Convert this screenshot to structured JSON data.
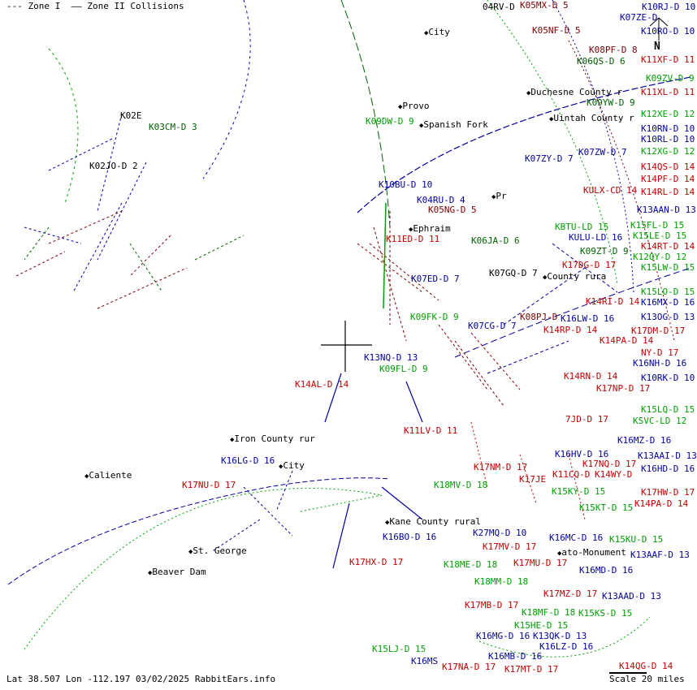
{
  "legend": {
    "zone1_symbol": "---",
    "zone1_label": "Zone I",
    "zone2_symbol": "——",
    "zone2_label": "Zone II",
    "collisions_label": "Collisions"
  },
  "status": {
    "coordinates": "Lat 38.507 Lon -112.197",
    "date": "03/02/2025",
    "site": "RabbitEars.info"
  },
  "scale": {
    "label": "Scale 20 miles"
  },
  "north": {
    "label": "N"
  },
  "colors": {
    "darkred": "#7a0000",
    "red": "#c00000",
    "blue": "#0000a0",
    "green": "#00a000",
    "darkgreen": "#006000",
    "black": "#000000"
  },
  "stations": [
    {
      "text": "04RV-D",
      "color": "black"
    },
    {
      "text": "K05MX-D 5",
      "color": "darkred"
    },
    {
      "text": "K10RJ-D 10",
      "color": "blue"
    },
    {
      "text": "K07ZE-D",
      "color": "blue"
    },
    {
      "text": "K10RO-D 10",
      "color": "blue"
    },
    {
      "text": "K05NF-D 5",
      "color": "darkred"
    },
    {
      "text": "K08PF-D 8",
      "color": "darkred"
    },
    {
      "text": "K11XF-D 11",
      "color": "red"
    },
    {
      "text": "K06QS-D 6",
      "color": "darkgreen"
    },
    {
      "text": "K09ZV-D 9",
      "color": "green"
    },
    {
      "text": "K11XL-D 11",
      "color": "red"
    },
    {
      "text": "K09YW-D 9",
      "color": "darkgreen"
    },
    {
      "text": "K12XE-D 12",
      "color": "green"
    },
    {
      "text": "K10RN-D 10",
      "color": "blue"
    },
    {
      "text": "K10RL-D 10",
      "color": "blue"
    },
    {
      "text": "K12XG-D 12",
      "color": "green"
    },
    {
      "text": "K07ZW-D 7",
      "color": "blue"
    },
    {
      "text": "K07ZY-D 7",
      "color": "blue"
    },
    {
      "text": "K14QS-D 14",
      "color": "red"
    },
    {
      "text": "K14PF-D 14",
      "color": "red"
    },
    {
      "text": "KULX-CD 14",
      "color": "red"
    },
    {
      "text": "K14RL-D 14",
      "color": "red"
    },
    {
      "text": "K13AAN-D 13",
      "color": "blue"
    },
    {
      "text": "KBTU-LD 15",
      "color": "green"
    },
    {
      "text": "K15FL-D 15",
      "color": "green"
    },
    {
      "text": "KULU-LD 16",
      "color": "blue"
    },
    {
      "text": "K15LE-D 15",
      "color": "green"
    },
    {
      "text": "K09ZT-D 9",
      "color": "darkgreen"
    },
    {
      "text": "K14RT-D 14",
      "color": "red"
    },
    {
      "text": "K12QY-D 12",
      "color": "green"
    },
    {
      "text": "K17DG-D 17",
      "color": "red"
    },
    {
      "text": "K15LW-D 15",
      "color": "green"
    },
    {
      "text": "K15LO-D 15",
      "color": "green"
    },
    {
      "text": "K16MX-D 16",
      "color": "blue"
    },
    {
      "text": "K14RI-D 14",
      "color": "red"
    },
    {
      "text": "K08PJ-D",
      "color": "darkred"
    },
    {
      "text": "K16LW-D 16",
      "color": "blue"
    },
    {
      "text": "K13OG-D 13",
      "color": "blue"
    },
    {
      "text": "K14RP-D 14",
      "color": "red"
    },
    {
      "text": "K17DM-D 17",
      "color": "red"
    },
    {
      "text": "K14PA-D 14",
      "color": "red"
    },
    {
      "text": "NY-D 17",
      "color": "red"
    },
    {
      "text": "K16NH-D 16",
      "color": "blue"
    },
    {
      "text": "K10RK-D 10",
      "color": "blue"
    },
    {
      "text": "K14RN-D 14",
      "color": "red"
    },
    {
      "text": "K17NP-D 17",
      "color": "red"
    },
    {
      "text": "K15LQ-D 15",
      "color": "green"
    },
    {
      "text": "7JD-D 17",
      "color": "red"
    },
    {
      "text": "KSVC-LD 12",
      "color": "green"
    },
    {
      "text": "K16MZ-D 16",
      "color": "blue"
    },
    {
      "text": "K16HV-D 16",
      "color": "blue"
    },
    {
      "text": "K13AAI-D 13",
      "color": "blue"
    },
    {
      "text": "K17NQ-D 17",
      "color": "red"
    },
    {
      "text": "K16HD-D 16",
      "color": "blue"
    },
    {
      "text": "K17NM-D 17",
      "color": "red"
    },
    {
      "text": "K11CQ-D",
      "color": "red"
    },
    {
      "text": "K14WY-D",
      "color": "red"
    },
    {
      "text": "K17JE",
      "color": "red"
    },
    {
      "text": "K15KY-D 15",
      "color": "green"
    },
    {
      "text": "K17HW-D 17",
      "color": "red"
    },
    {
      "text": "K15KT-D 15",
      "color": "green"
    },
    {
      "text": "K14PA-D 14",
      "color": "red"
    },
    {
      "text": "K27MQ-D 10",
      "color": "blue"
    },
    {
      "text": "K16MC-D 16",
      "color": "blue"
    },
    {
      "text": "K15KU-D 15",
      "color": "green"
    },
    {
      "text": "K17MV-D 17",
      "color": "red"
    },
    {
      "text": "K13AAF-D 13",
      "color": "blue"
    },
    {
      "text": "K17MU-D 17",
      "color": "red"
    },
    {
      "text": "K16MD-D 16",
      "color": "blue"
    },
    {
      "text": "K18MM-D 18",
      "color": "green"
    },
    {
      "text": "K17MZ-D 17",
      "color": "red"
    },
    {
      "text": "K13AAD-D 13",
      "color": "blue"
    },
    {
      "text": "K17MB-D 17",
      "color": "red"
    },
    {
      "text": "K18MF-D 18",
      "color": "green"
    },
    {
      "text": "K15KS-D 15",
      "color": "green"
    },
    {
      "text": "K15HE-D 15",
      "color": "green"
    },
    {
      "text": "K16MG-D 16",
      "color": "blue"
    },
    {
      "text": "K13QK-D 13",
      "color": "blue"
    },
    {
      "text": "K16LZ-D 16",
      "color": "blue"
    },
    {
      "text": "K16MB-D 16",
      "color": "blue"
    },
    {
      "text": "K17MT-D 17",
      "color": "red"
    },
    {
      "text": "K17NA-D 17",
      "color": "red"
    },
    {
      "text": "K16MS",
      "color": "blue"
    },
    {
      "text": "K15LJ-D 15",
      "color": "green"
    },
    {
      "text": "K14QG-D 14",
      "color": "red"
    },
    {
      "text": "K03CM-D 3",
      "color": "darkgreen"
    },
    {
      "text": "K02JO-D 2",
      "color": "black"
    },
    {
      "text": "K02E",
      "color": "black"
    },
    {
      "text": "K09DW-D 9",
      "color": "green"
    },
    {
      "text": "K10BU-D 10",
      "color": "blue"
    },
    {
      "text": "K04RU-D 4",
      "color": "blue"
    },
    {
      "text": "K05NG-D 5",
      "color": "darkred"
    },
    {
      "text": "K06JA-D 6",
      "color": "darkgreen"
    },
    {
      "text": "K11ED-D 11",
      "color": "red"
    },
    {
      "text": "K07ED-D 7",
      "color": "blue"
    },
    {
      "text": "K07GQ-D 7",
      "color": "black"
    },
    {
      "text": "K09FK-D 9",
      "color": "green"
    },
    {
      "text": "K07CG-D 7",
      "color": "blue"
    },
    {
      "text": "K13NQ-D 13",
      "color": "blue"
    },
    {
      "text": "K09FL-D 9",
      "color": "green"
    },
    {
      "text": "K14AL-D 14",
      "color": "red"
    },
    {
      "text": "K11LV-D 11",
      "color": "red"
    },
    {
      "text": "K16LG-D 16",
      "color": "blue"
    },
    {
      "text": "K17NU-D 17",
      "color": "red"
    },
    {
      "text": "K16BO-D 16",
      "color": "blue"
    },
    {
      "text": "K17HX-D 17",
      "color": "red"
    },
    {
      "text": "K18ME-D 18",
      "color": "green"
    },
    {
      "text": "K18MV-D 18",
      "color": "green"
    }
  ],
  "places": [
    {
      "text": "Provo"
    },
    {
      "text": "Spanish Fork"
    },
    {
      "text": "Duchesne County r"
    },
    {
      "text": "Uintah County r"
    },
    {
      "text": "Pr"
    },
    {
      "text": "Ephraim"
    },
    {
      "text": "County rura"
    },
    {
      "text": "Kane County rural"
    },
    {
      "text": "St. George"
    },
    {
      "text": "Beaver Dam"
    },
    {
      "text": "Caliente"
    },
    {
      "text": "Iron County rur"
    },
    {
      "text": "City"
    },
    {
      "text": "City"
    },
    {
      "text": "ato-Monument"
    }
  ]
}
